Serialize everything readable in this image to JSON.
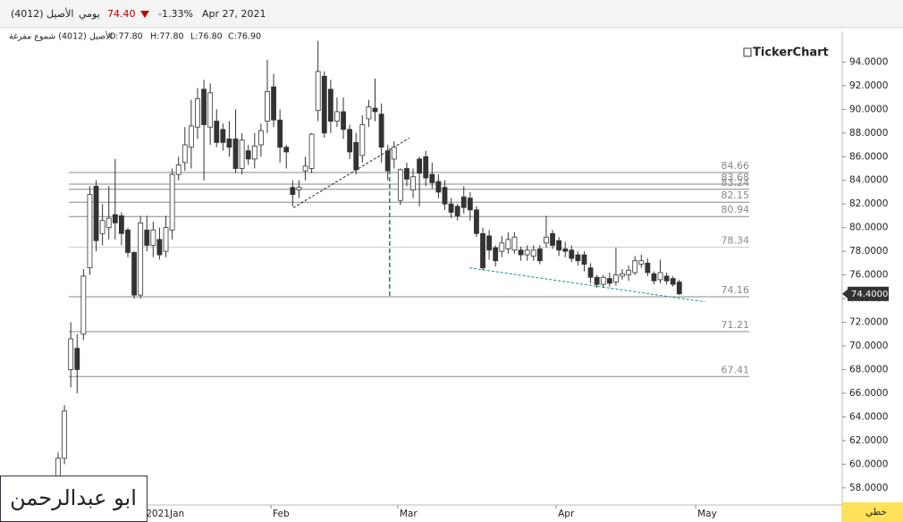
{
  "toolbar": {
    "symbol": "الأصيل (4012)",
    "period": "يومي",
    "price": "74.40",
    "change": "-1.33%",
    "date": "Apr 27, 2021"
  },
  "legend": {
    "name": "الأصيل (4012) شموع مفرغة",
    "open": "O:77.80",
    "high": "H:77.80",
    "low": "L:76.80",
    "close": "C:76.90"
  },
  "brand": "TickerChart",
  "signature": "ابو عبدالرحمن",
  "chart_style_button": "خطي",
  "chart_data": {
    "type": "candlestick",
    "categories": [
      null,
      null,
      null,
      null,
      null,
      null,
      null,
      null,
      null,
      null,
      null,
      null,
      null,
      null,
      "2021Jan",
      null,
      null,
      null,
      null,
      null,
      null,
      null,
      null,
      null,
      null,
      null,
      null,
      null,
      null,
      null,
      null,
      null,
      null,
      null,
      "Feb",
      null,
      null,
      null,
      null,
      null,
      null,
      null,
      null,
      null,
      null,
      null,
      null,
      null,
      null,
      null,
      null,
      null,
      null,
      null,
      "Mar",
      null,
      null,
      null,
      null,
      null,
      null,
      null,
      null,
      null,
      null,
      null,
      null,
      null,
      null,
      null,
      null,
      null,
      null,
      null,
      null,
      null,
      null,
      null,
      null,
      "Apr",
      null,
      null,
      null,
      null,
      null,
      null,
      null,
      null,
      null,
      null,
      null,
      null,
      null,
      null,
      null,
      null,
      null,
      null,
      null,
      null,
      null,
      "May"
    ],
    "open": [
      58.3,
      60.5,
      68,
      69.8,
      71,
      76.6,
      83.5,
      79.5,
      80,
      81.1,
      81,
      79.8,
      77.9,
      74.3,
      79.8,
      78.5,
      79,
      78,
      79.8,
      84.5,
      85.5,
      86.8,
      88.5,
      91.7,
      88.5,
      89,
      88.3,
      87.5,
      87.5,
      85,
      86.5,
      85.8,
      87,
      89,
      91.9,
      89.1,
      86.8,
      83.4,
      83.2,
      84.8,
      85,
      89.9,
      92.8,
      91.7,
      89,
      89.8,
      88.3,
      87.2,
      86.1,
      89.2,
      90.1,
      89.6,
      86.5,
      85.8,
      82.3,
      85,
      83.2,
      85.8,
      86,
      84.5,
      83.9,
      83.4,
      82,
      81.8,
      82.6,
      82.5,
      81.5,
      79.5,
      79.3,
      78.3,
      78,
      78.2,
      78.1,
      78.1,
      77.7,
      77.6,
      78.2,
      78.7,
      79.5,
      78.9,
      78.2,
      78.1,
      77.7,
      77.7,
      76.6,
      75.8,
      75.2,
      75.7,
      75.4,
      75.9,
      76,
      76.2,
      76.9,
      77,
      76.1,
      75.6,
      75.9,
      75.7,
      75.4,
      null,
      null,
      null
    ],
    "high": [
      61,
      65,
      72,
      71,
      76.5,
      83.5,
      84,
      82,
      83.5,
      85.8,
      81.3,
      80,
      78,
      81,
      81,
      80.5,
      80,
      81,
      85,
      86,
      88.5,
      90.8,
      91.8,
      92.5,
      92.2,
      90,
      88.8,
      89,
      90,
      88,
      87,
      88,
      88.8,
      94.2,
      93,
      90,
      87,
      84,
      84,
      86,
      88,
      95.8,
      93.2,
      92.5,
      91,
      91,
      88.7,
      88,
      89.5,
      90.8,
      92.6,
      90.5,
      87,
      87.3,
      85,
      85.5,
      85,
      86,
      86.5,
      85.5,
      84.5,
      84,
      82.5,
      82,
      83.5,
      83,
      81.8,
      80,
      79.8,
      78.5,
      79.3,
      79.6,
      79.6,
      78.4,
      78.5,
      78.5,
      78.5,
      81,
      79.8,
      79.2,
      78.8,
      78.5,
      78,
      78,
      77,
      76,
      76,
      76.2,
      78.3,
      76.5,
      76.8,
      77.6,
      77.7,
      77.4,
      76.3,
      77.3,
      76.2,
      75.9,
      75.6,
      null,
      null,
      null
    ],
    "low": [
      56.8,
      60,
      66.5,
      66,
      70.5,
      76,
      78,
      78.5,
      79,
      79,
      78.5,
      77.5,
      74,
      74,
      78,
      77.5,
      77.3,
      77.5,
      79,
      84,
      84.8,
      85,
      87.5,
      84,
      87,
      86.8,
      86.5,
      86,
      84.6,
      84.5,
      85.3,
      85,
      86,
      88,
      88.5,
      85.5,
      85,
      81.8,
      82.5,
      84,
      84.6,
      89,
      87.6,
      88,
      88.5,
      87.5,
      85.8,
      84.5,
      85.5,
      88.5,
      89,
      85.5,
      84,
      85,
      81.9,
      83.5,
      82.5,
      81.8,
      83.5,
      83.3,
      82.5,
      81.5,
      80.8,
      80.6,
      81.2,
      80.6,
      79.2,
      76.4,
      77.3,
      76.7,
      77.5,
      77.8,
      77.8,
      77.2,
      77.2,
      77.2,
      76.9,
      78.3,
      78.2,
      77.6,
      77.5,
      77.1,
      76.8,
      76.3,
      75.3,
      74.9,
      74.9,
      75,
      75.1,
      75.6,
      75.5,
      76,
      76.6,
      75.9,
      75.2,
      75.3,
      75.2,
      75,
      74.3,
      null,
      null,
      null
    ],
    "close": [
      60.5,
      64.5,
      70.6,
      68,
      75.9,
      82.8,
      78.9,
      80.6,
      80.8,
      80.4,
      79.5,
      77.9,
      74.3,
      80.4,
      78.5,
      79.8,
      77.7,
      80,
      84.5,
      85.3,
      87,
      88.6,
      90.9,
      88.7,
      91.4,
      87.2,
      87.2,
      86.8,
      85,
      87.4,
      85.8,
      86.9,
      88.2,
      91.5,
      89.1,
      86.8,
      86.4,
      82.8,
      83.4,
      85.2,
      87.9,
      93.2,
      88,
      89,
      89.8,
      88.3,
      86.4,
      84.9,
      88.7,
      90.2,
      89.8,
      86.8,
      84.8,
      86.8,
      84.9,
      84.1,
      84.3,
      84.6,
      84.2,
      83.8,
      83,
      82,
      81.3,
      81,
      81.7,
      81.5,
      79.5,
      76.6,
      78.1,
      77.2,
      78.7,
      79,
      79.2,
      77.7,
      78.1,
      78.1,
      77.2,
      79.2,
      78.5,
      78.1,
      78,
      77.4,
      77.2,
      76.9,
      75.8,
      75.2,
      75.8,
      75.3,
      76,
      76.1,
      76.4,
      77.2,
      77.2,
      76.2,
      75.5,
      76.2,
      75.5,
      75.2,
      74.4,
      null,
      null,
      null
    ],
    "up_color": "#ffffff",
    "down_color": "#333333",
    "outline_color": "#333333",
    "ylim": [
      56.7,
      96.6
    ],
    "yticks": [
      {
        "value": 58,
        "label": "58.0000"
      },
      {
        "value": 60,
        "label": "60.0000"
      },
      {
        "value": 62,
        "label": "62.0000"
      },
      {
        "value": 64,
        "label": "64.0000"
      },
      {
        "value": 66,
        "label": "66.0000"
      },
      {
        "value": 68,
        "label": "68.0000"
      },
      {
        "value": 70,
        "label": "70.0000"
      },
      {
        "value": 72,
        "label": "72.0000"
      },
      {
        "value": 74,
        "label": "74.0000"
      },
      {
        "value": 76,
        "label": "76.0000"
      },
      {
        "value": 78,
        "label": "78.0000"
      },
      {
        "value": 80,
        "label": "80.0000"
      },
      {
        "value": 82,
        "label": "82.0000"
      },
      {
        "value": 84,
        "label": "84.0000"
      },
      {
        "value": 86,
        "label": "86.0000"
      },
      {
        "value": 88,
        "label": "88.0000"
      },
      {
        "value": 90,
        "label": "90.0000"
      },
      {
        "value": 92,
        "label": "92.0000"
      },
      {
        "value": 94,
        "label": "94.0000"
      }
    ],
    "last_price": {
      "value": 74.4,
      "label": "74.4000"
    },
    "levels": [
      84.66,
      83.68,
      83.24,
      82.15,
      80.94,
      78.34,
      74.16,
      71.21,
      67.41
    ],
    "trendlines": [
      {
        "color": "#222222",
        "start": [
          37.1,
          81.68
        ],
        "end": [
          55.4,
          87.58
        ]
      },
      {
        "color": "#1a8a8a",
        "start": [
          64.9,
          76.6
        ],
        "end": [
          102,
          73.73
        ]
      },
      {
        "color": "#1a8a8a",
        "start": [
          52.3,
          86.7
        ],
        "end": [
          52.3,
          74.16
        ]
      }
    ]
  }
}
